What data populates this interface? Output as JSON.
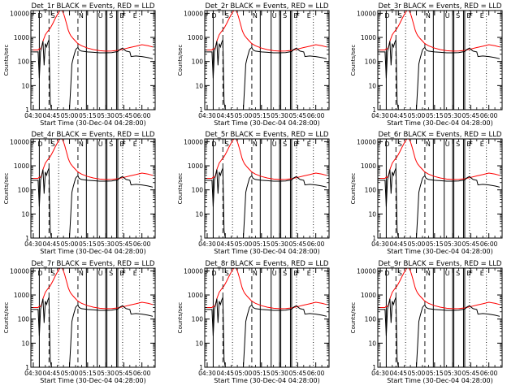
{
  "chart_data": {
    "type": "line",
    "panels": [
      {
        "title": "Det_1r BLACK = Events, RED = LLD",
        "xlabel": "Start Time (30-Dec-04 04:28:00)",
        "ylabel": "Counts/sec"
      },
      {
        "title": "Det_2r BLACK = Events, RED = LLD",
        "xlabel": "Start Time (30-Dec-04 04:28:00)",
        "ylabel": "Counts/sec"
      },
      {
        "title": "Det_3r BLACK = Events, RED = LLD",
        "xlabel": "Start Time (30-Dec-04 04:28:00)",
        "ylabel": "Counts/sec"
      },
      {
        "title": "Det_4r BLACK = Events, RED = LLD",
        "xlabel": "Start Time (30-Dec-04 04:28:00)",
        "ylabel": "Counts/sec"
      },
      {
        "title": "Det_5r BLACK = Events, RED = LLD",
        "xlabel": "Start Time (30-Dec-04 04:28:00)",
        "ylabel": "Counts/sec"
      },
      {
        "title": "Det_6r BLACK = Events, RED = LLD",
        "xlabel": "Start Time (30-Dec-04 04:28:00)",
        "ylabel": "Counts/sec"
      },
      {
        "title": "Det_7r BLACK = Events, RED = LLD",
        "xlabel": "Start Time (30-Dec-04 04:28:00)",
        "ylabel": "Counts/sec"
      },
      {
        "title": "Det_8r BLACK = Events, RED = LLD",
        "xlabel": "Start Time (30-Dec-04 04:28:00)",
        "ylabel": "Counts/sec"
      },
      {
        "title": "Det_9r BLACK = Events, RED = LLD",
        "xlabel": "Start Time (30-Dec-04 04:28:00)",
        "ylabel": "Counts/sec"
      }
    ],
    "x_tick_labels": [
      "04:30",
      "04:45",
      "05:00",
      "05:15",
      "05:30",
      "05:45",
      "06:00"
    ],
    "x_tick_minutes": [
      0,
      15,
      30,
      45,
      60,
      75,
      90
    ],
    "xlim_minutes": [
      -2,
      101
    ],
    "y_tick_labels": [
      "1",
      "10",
      "100",
      "1000",
      "10000"
    ],
    "y_scale": "log",
    "ylim": [
      1,
      13000
    ],
    "region_labels": [
      "D",
      "S",
      "N",
      "U",
      "S",
      "E",
      "F",
      "E"
    ],
    "region_label_minutes": [
      3,
      14,
      37,
      53,
      62,
      71,
      73,
      82
    ],
    "marker_lines": [
      {
        "minute": 5,
        "style": "solid"
      },
      {
        "minute": 13,
        "style": "dashed"
      },
      {
        "minute": 21,
        "style": "dotted"
      },
      {
        "minute": 37,
        "style": "dashed"
      },
      {
        "minute": 44,
        "style": "solid"
      },
      {
        "minute": 53,
        "style": "solid"
      },
      {
        "minute": 60,
        "style": "solid"
      },
      {
        "minute": 61,
        "style": "solid"
      },
      {
        "minute": 69,
        "style": "solid"
      },
      {
        "minute": 70,
        "style": "solid"
      },
      {
        "minute": 74,
        "style": "dotted"
      },
      {
        "minute": 88,
        "style": "dotted"
      }
    ],
    "series": [
      {
        "color": "#ff0000",
        "x": [
          -2,
          4,
          5,
          6,
          7,
          8,
          10,
          12,
          14,
          16,
          18,
          20,
          22,
          24,
          25,
          26,
          27,
          28,
          29,
          30,
          31,
          33,
          35,
          37,
          40,
          45,
          50,
          55,
          60,
          65,
          70,
          75,
          80,
          85,
          90,
          95,
          99
        ],
        "y": [
          300,
          300,
          340,
          330,
          420,
          700,
          1300,
          1800,
          2400,
          3600,
          5800,
          9000,
          13000,
          13000,
          10000,
          7000,
          4600,
          3000,
          2000,
          1500,
          1200,
          900,
          700,
          550,
          450,
          360,
          310,
          280,
          270,
          275,
          290,
          330,
          380,
          430,
          500,
          450,
          400
        ]
      },
      {
        "color": "#000000",
        "x": [
          -2,
          4,
          5,
          6,
          7,
          8,
          9,
          10,
          11,
          12,
          13,
          14,
          15,
          20,
          30,
          31,
          32,
          33,
          34,
          35,
          36,
          37,
          38,
          40,
          45,
          50,
          55,
          60,
          65,
          70,
          72,
          74,
          75,
          77,
          80,
          81,
          85,
          90,
          95,
          99
        ],
        "y": [
          250,
          250,
          20,
          250,
          420,
          700,
          70,
          550,
          400,
          600,
          800,
          2,
          1,
          1,
          1,
          8,
          80,
          130,
          200,
          300,
          350,
          380,
          300,
          270,
          250,
          240,
          230,
          230,
          235,
          260,
          320,
          360,
          320,
          270,
          250,
          160,
          170,
          160,
          145,
          130
        ]
      }
    ]
  }
}
